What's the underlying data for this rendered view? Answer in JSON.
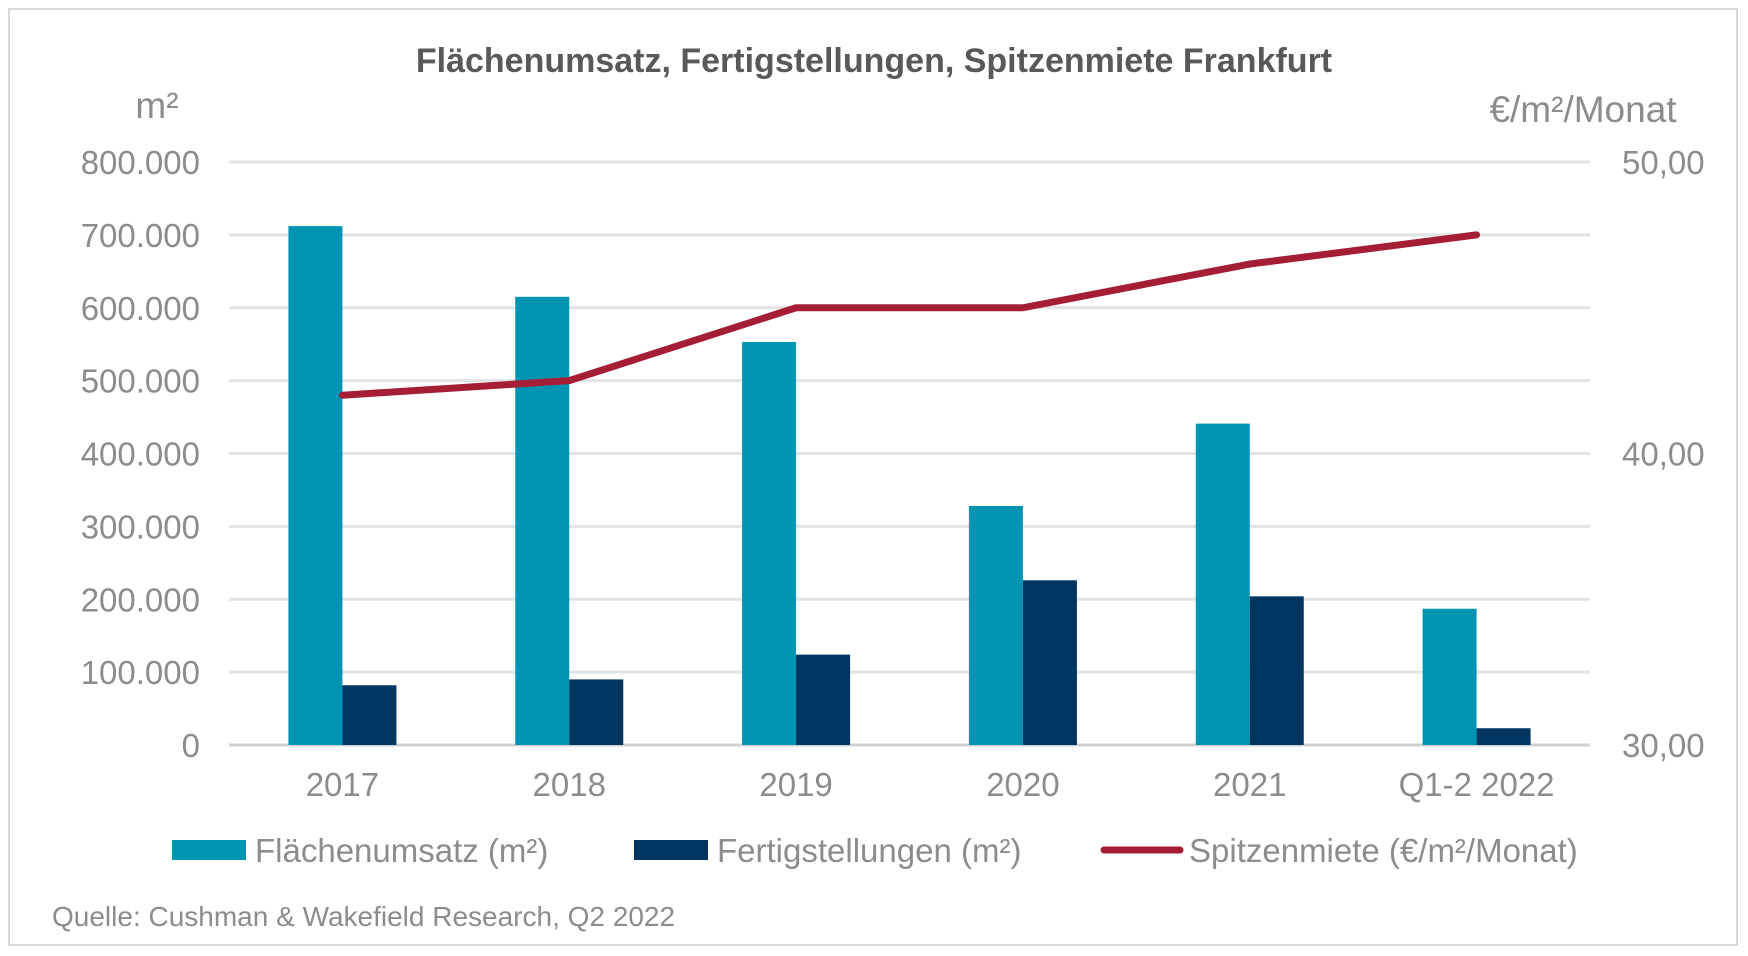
{
  "chart_data": {
    "type": "bar",
    "title": "Flächenumsatz, Fertigstellungen, Spitzenmiete Frankfurt",
    "y_left_label": "m²",
    "y_right_label": "€/m²/Monat",
    "categories": [
      "2017",
      "2018",
      "2019",
      "2020",
      "2021",
      "Q1-2 2022"
    ],
    "y_left_ticks": [
      "0",
      "100.000",
      "200.000",
      "300.000",
      "400.000",
      "500.000",
      "600.000",
      "700.000",
      "800.000"
    ],
    "y_left_range": [
      0,
      800000
    ],
    "y_right_ticks": [
      "30,00",
      "40,00",
      "50,00"
    ],
    "y_right_range": [
      30,
      50
    ],
    "series": [
      {
        "name": "Flächenumsatz (m²)",
        "kind": "bar",
        "axis": "left",
        "color": "#0094b3",
        "values": [
          712000,
          615000,
          553000,
          328000,
          441000,
          187000
        ]
      },
      {
        "name": "Fertigstellungen (m²)",
        "kind": "bar",
        "axis": "left",
        "color": "#003660",
        "values": [
          82000,
          90000,
          124000,
          226000,
          204000,
          23000
        ]
      },
      {
        "name": "Spitzenmiete (€/m²/Monat)",
        "kind": "line",
        "axis": "right",
        "color": "#a51e36",
        "values": [
          42.0,
          42.5,
          45.0,
          45.0,
          46.5,
          47.5
        ]
      }
    ],
    "source": "Quelle: Cushman & Wakefield Research, Q2 2022"
  }
}
